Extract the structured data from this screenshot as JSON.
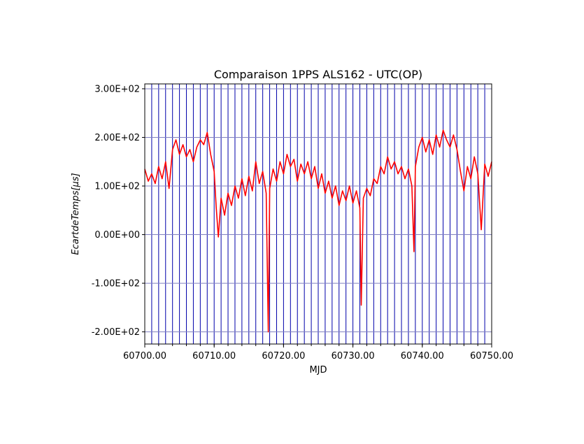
{
  "chart_data": {
    "type": "line",
    "title": "Comparaison 1PPS ALS162 - UTC(OP)",
    "xlabel": "MJD",
    "ylabel": "EcartdeTemps[μs]",
    "xlim": [
      60700,
      60750
    ],
    "ylim": [
      -225,
      310
    ],
    "x_ticks": [
      {
        "value": 60700,
        "label": "60700.00"
      },
      {
        "value": 60710,
        "label": "60710.00"
      },
      {
        "value": 60720,
        "label": "60720.00"
      },
      {
        "value": 60730,
        "label": "60730.00"
      },
      {
        "value": 60740,
        "label": "60740.00"
      },
      {
        "value": 60750,
        "label": "60750.00"
      }
    ],
    "y_ticks": [
      {
        "value": -200,
        "label": "-2.00E+02"
      },
      {
        "value": -100,
        "label": "-1.00E+02"
      },
      {
        "value": 0,
        "label": "0.00E+00"
      },
      {
        "value": 100,
        "label": "1.00E+02"
      },
      {
        "value": 200,
        "label": "2.00E+02"
      },
      {
        "value": 300,
        "label": "3.00E+02"
      }
    ],
    "grid": true,
    "day_lines_color": "#0000aa",
    "series": [
      {
        "color": "#ff0000",
        "points": [
          [
            60700.0,
            135
          ],
          [
            60700.5,
            110
          ],
          [
            60701.0,
            125
          ],
          [
            60701.5,
            105
          ],
          [
            60702.0,
            140
          ],
          [
            60702.5,
            115
          ],
          [
            60703.0,
            150
          ],
          [
            60703.5,
            95
          ],
          [
            60704.0,
            175
          ],
          [
            60704.5,
            195
          ],
          [
            60705.0,
            165
          ],
          [
            60705.5,
            185
          ],
          [
            60706.0,
            160
          ],
          [
            60706.5,
            175
          ],
          [
            60707.0,
            150
          ],
          [
            60707.5,
            180
          ],
          [
            60708.0,
            195
          ],
          [
            60708.5,
            185
          ],
          [
            60709.0,
            210
          ],
          [
            60709.5,
            165
          ],
          [
            60710.0,
            130
          ],
          [
            60710.3,
            55
          ],
          [
            60710.6,
            -5
          ],
          [
            60711.0,
            75
          ],
          [
            60711.5,
            40
          ],
          [
            60712.0,
            85
          ],
          [
            60712.5,
            60
          ],
          [
            60713.0,
            100
          ],
          [
            60713.5,
            75
          ],
          [
            60714.0,
            115
          ],
          [
            60714.5,
            80
          ],
          [
            60715.0,
            120
          ],
          [
            60715.5,
            90
          ],
          [
            60716.0,
            150
          ],
          [
            60716.5,
            105
          ],
          [
            60717.0,
            130
          ],
          [
            60717.5,
            85
          ],
          [
            60717.8,
            -200
          ],
          [
            60718.0,
            95
          ],
          [
            60718.5,
            135
          ],
          [
            60719.0,
            110
          ],
          [
            60719.5,
            150
          ],
          [
            60720.0,
            125
          ],
          [
            60720.5,
            165
          ],
          [
            60721.0,
            140
          ],
          [
            60721.5,
            155
          ],
          [
            60722.0,
            110
          ],
          [
            60722.5,
            145
          ],
          [
            60723.0,
            125
          ],
          [
            60723.5,
            150
          ],
          [
            60724.0,
            115
          ],
          [
            60724.5,
            140
          ],
          [
            60725.0,
            95
          ],
          [
            60725.5,
            125
          ],
          [
            60726.0,
            85
          ],
          [
            60726.5,
            110
          ],
          [
            60727.0,
            75
          ],
          [
            60727.5,
            100
          ],
          [
            60728.0,
            60
          ],
          [
            60728.5,
            90
          ],
          [
            60729.0,
            70
          ],
          [
            60729.5,
            100
          ],
          [
            60730.0,
            65
          ],
          [
            60730.5,
            90
          ],
          [
            60731.0,
            55
          ],
          [
            60731.2,
            -145
          ],
          [
            60731.5,
            75
          ],
          [
            60732.0,
            95
          ],
          [
            60732.5,
            80
          ],
          [
            60733.0,
            115
          ],
          [
            60733.5,
            105
          ],
          [
            60734.0,
            140
          ],
          [
            60734.5,
            125
          ],
          [
            60735.0,
            160
          ],
          [
            60735.5,
            135
          ],
          [
            60736.0,
            150
          ],
          [
            60736.5,
            125
          ],
          [
            60737.0,
            140
          ],
          [
            60737.5,
            115
          ],
          [
            60738.0,
            135
          ],
          [
            60738.5,
            100
          ],
          [
            60738.8,
            -35
          ],
          [
            60739.0,
            140
          ],
          [
            60739.5,
            180
          ],
          [
            60740.0,
            200
          ],
          [
            60740.5,
            170
          ],
          [
            60741.0,
            195
          ],
          [
            60741.5,
            165
          ],
          [
            60742.0,
            205
          ],
          [
            60742.5,
            180
          ],
          [
            60743.0,
            215
          ],
          [
            60743.5,
            195
          ],
          [
            60744.0,
            180
          ],
          [
            60744.5,
            205
          ],
          [
            60745.0,
            175
          ],
          [
            60745.5,
            130
          ],
          [
            60746.0,
            90
          ],
          [
            60746.5,
            140
          ],
          [
            60747.0,
            115
          ],
          [
            60747.5,
            160
          ],
          [
            60748.0,
            125
          ],
          [
            60748.5,
            10
          ],
          [
            60749.0,
            145
          ],
          [
            60749.5,
            120
          ],
          [
            60750.0,
            150
          ]
        ]
      }
    ]
  }
}
